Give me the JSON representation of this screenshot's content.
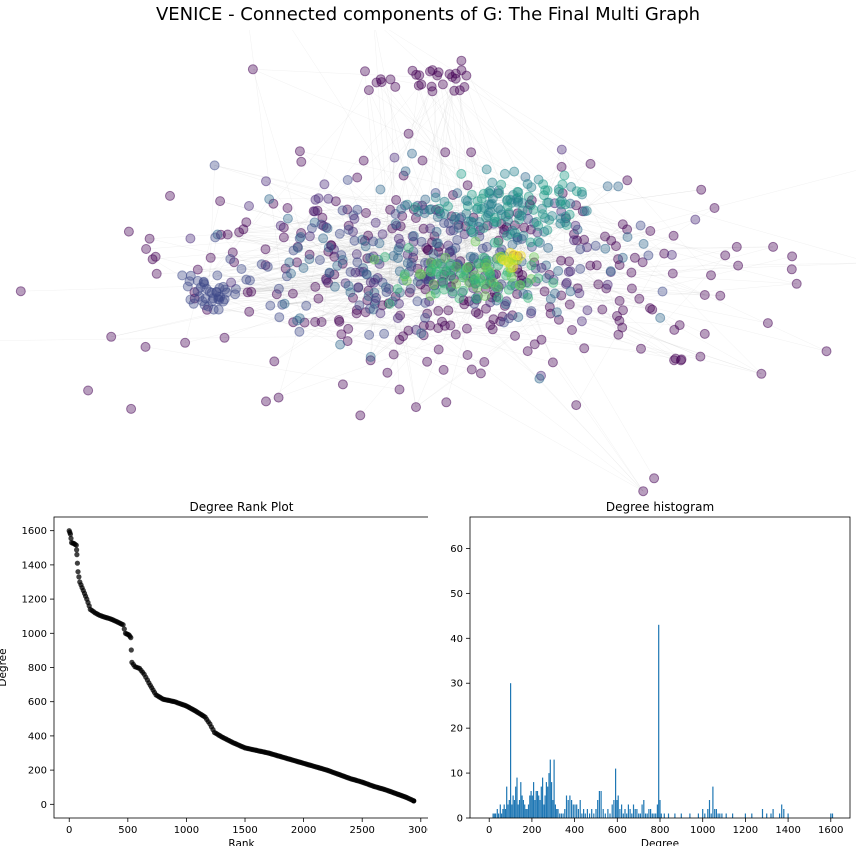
{
  "figure": {
    "title": "VENICE - Connected components of G: The Final Multi Graph"
  },
  "chart_data": [
    {
      "type": "scatter",
      "name": "network-graph",
      "title": "",
      "description_colormap": "viridis",
      "edge_color": "#bbbbbb",
      "node_alpha": 0.35,
      "node_count_estimate": 2950,
      "axes_visible": false
    },
    {
      "type": "line",
      "title": "Degree Rank Plot",
      "xlabel": "Rank",
      "ylabel": "Degree",
      "xlim": [
        -130,
        3070
      ],
      "ylim": [
        -80,
        1680
      ],
      "xticks": [
        0,
        500,
        1000,
        1500,
        2000,
        2500,
        3000
      ],
      "yticks": [
        0,
        200,
        400,
        600,
        800,
        1000,
        1200,
        1400,
        1600
      ],
      "marker_color": "#000000",
      "points": [
        [
          0,
          1600
        ],
        [
          10,
          1580
        ],
        [
          20,
          1530
        ],
        [
          40,
          1525
        ],
        [
          60,
          1515
        ],
        [
          65,
          1460
        ],
        [
          75,
          1360
        ],
        [
          90,
          1300
        ],
        [
          120,
          1250
        ],
        [
          150,
          1200
        ],
        [
          180,
          1140
        ],
        [
          220,
          1120
        ],
        [
          260,
          1105
        ],
        [
          300,
          1095
        ],
        [
          350,
          1085
        ],
        [
          400,
          1070
        ],
        [
          460,
          1050
        ],
        [
          480,
          1000
        ],
        [
          510,
          990
        ],
        [
          525,
          975
        ],
        [
          535,
          830
        ],
        [
          560,
          805
        ],
        [
          600,
          795
        ],
        [
          640,
          760
        ],
        [
          680,
          710
        ],
        [
          740,
          640
        ],
        [
          800,
          615
        ],
        [
          900,
          600
        ],
        [
          1000,
          575
        ],
        [
          1080,
          545
        ],
        [
          1160,
          510
        ],
        [
          1200,
          470
        ],
        [
          1240,
          420
        ],
        [
          1300,
          395
        ],
        [
          1400,
          360
        ],
        [
          1500,
          330
        ],
        [
          1600,
          315
        ],
        [
          1700,
          300
        ],
        [
          1800,
          280
        ],
        [
          1900,
          260
        ],
        [
          2000,
          240
        ],
        [
          2100,
          220
        ],
        [
          2200,
          200
        ],
        [
          2300,
          175
        ],
        [
          2400,
          150
        ],
        [
          2500,
          130
        ],
        [
          2600,
          105
        ],
        [
          2700,
          85
        ],
        [
          2800,
          60
        ],
        [
          2880,
          40
        ],
        [
          2940,
          20
        ]
      ]
    },
    {
      "type": "bar",
      "title": "Degree histogram",
      "xlabel": "Degree",
      "ylabel": "# of Nodes",
      "xlim": [
        -90,
        1690
      ],
      "ylim": [
        0,
        67
      ],
      "xticks": [
        0,
        200,
        400,
        600,
        800,
        1000,
        1200,
        1400,
        1600
      ],
      "yticks": [
        0,
        10,
        20,
        30,
        40,
        50,
        60
      ],
      "bar_color": "#1f77b4",
      "bins": [
        [
          18,
          1
        ],
        [
          24,
          1
        ],
        [
          30,
          1
        ],
        [
          38,
          2
        ],
        [
          44,
          1
        ],
        [
          52,
          3
        ],
        [
          58,
          1
        ],
        [
          64,
          2
        ],
        [
          70,
          3
        ],
        [
          76,
          2
        ],
        [
          82,
          7
        ],
        [
          88,
          3
        ],
        [
          94,
          4
        ],
        [
          100,
          30
        ],
        [
          106,
          3
        ],
        [
          112,
          5
        ],
        [
          118,
          4
        ],
        [
          124,
          7
        ],
        [
          130,
          9
        ],
        [
          136,
          3
        ],
        [
          142,
          4
        ],
        [
          148,
          8
        ],
        [
          154,
          5
        ],
        [
          160,
          4
        ],
        [
          166,
          3
        ],
        [
          172,
          2
        ],
        [
          178,
          2
        ],
        [
          184,
          3
        ],
        [
          190,
          5
        ],
        [
          196,
          6
        ],
        [
          202,
          5
        ],
        [
          208,
          8
        ],
        [
          214,
          4
        ],
        [
          220,
          6
        ],
        [
          226,
          6
        ],
        [
          232,
          5
        ],
        [
          238,
          4
        ],
        [
          244,
          7
        ],
        [
          250,
          9
        ],
        [
          256,
          3
        ],
        [
          262,
          5
        ],
        [
          268,
          8
        ],
        [
          274,
          7
        ],
        [
          280,
          10
        ],
        [
          286,
          13
        ],
        [
          292,
          8
        ],
        [
          298,
          4
        ],
        [
          304,
          13
        ],
        [
          310,
          3
        ],
        [
          316,
          2
        ],
        [
          322,
          2
        ],
        [
          330,
          1
        ],
        [
          338,
          1
        ],
        [
          346,
          1
        ],
        [
          354,
          2
        ],
        [
          362,
          5
        ],
        [
          370,
          4
        ],
        [
          378,
          5
        ],
        [
          386,
          4
        ],
        [
          394,
          3
        ],
        [
          402,
          3
        ],
        [
          410,
          3
        ],
        [
          418,
          2
        ],
        [
          426,
          4
        ],
        [
          434,
          1
        ],
        [
          442,
          2
        ],
        [
          450,
          1
        ],
        [
          460,
          2
        ],
        [
          470,
          1
        ],
        [
          480,
          2
        ],
        [
          490,
          1
        ],
        [
          500,
          2
        ],
        [
          508,
          4
        ],
        [
          516,
          6
        ],
        [
          524,
          6
        ],
        [
          534,
          2
        ],
        [
          544,
          1
        ],
        [
          556,
          2
        ],
        [
          566,
          1
        ],
        [
          576,
          3
        ],
        [
          584,
          4
        ],
        [
          592,
          11
        ],
        [
          598,
          4
        ],
        [
          604,
          5
        ],
        [
          612,
          2
        ],
        [
          620,
          3
        ],
        [
          628,
          1
        ],
        [
          636,
          2
        ],
        [
          644,
          1
        ],
        [
          652,
          3
        ],
        [
          660,
          2
        ],
        [
          668,
          1
        ],
        [
          676,
          3
        ],
        [
          684,
          2
        ],
        [
          692,
          2
        ],
        [
          700,
          1
        ],
        [
          708,
          1
        ],
        [
          716,
          3
        ],
        [
          724,
          4
        ],
        [
          732,
          1
        ],
        [
          740,
          1
        ],
        [
          748,
          2
        ],
        [
          756,
          2
        ],
        [
          764,
          1
        ],
        [
          772,
          1
        ],
        [
          780,
          1
        ],
        [
          788,
          3
        ],
        [
          794,
          43
        ],
        [
          800,
          4
        ],
        [
          806,
          1
        ],
        [
          820,
          1
        ],
        [
          840,
          1
        ],
        [
          870,
          1
        ],
        [
          900,
          1
        ],
        [
          940,
          1
        ],
        [
          980,
          1
        ],
        [
          1000,
          2
        ],
        [
          1010,
          1
        ],
        [
          1024,
          2
        ],
        [
          1032,
          4
        ],
        [
          1040,
          1
        ],
        [
          1048,
          7
        ],
        [
          1056,
          2
        ],
        [
          1064,
          2
        ],
        [
          1072,
          1
        ],
        [
          1080,
          1
        ],
        [
          1090,
          1
        ],
        [
          1110,
          1
        ],
        [
          1140,
          1
        ],
        [
          1200,
          1
        ],
        [
          1230,
          1
        ],
        [
          1280,
          2
        ],
        [
          1300,
          1
        ],
        [
          1320,
          1
        ],
        [
          1330,
          2
        ],
        [
          1360,
          1
        ],
        [
          1370,
          3
        ],
        [
          1380,
          2
        ],
        [
          1400,
          1
        ],
        [
          1600,
          1
        ],
        [
          1608,
          1
        ]
      ]
    }
  ]
}
